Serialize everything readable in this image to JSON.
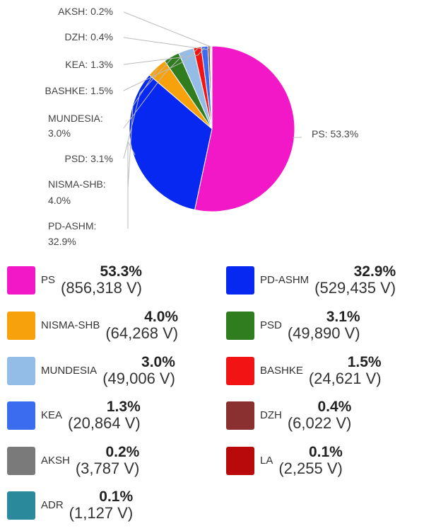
{
  "chart_data": {
    "type": "pie",
    "series": [
      {
        "name": "PS",
        "percent": 53.3,
        "votes": 856318,
        "votes_label": "(856,318 V)",
        "color": "#f218c7"
      },
      {
        "name": "PD-ASHM",
        "percent": 32.9,
        "votes": 529435,
        "votes_label": "(529,435 V)",
        "color": "#0628f0"
      },
      {
        "name": "NISMA-SHB",
        "percent": 4.0,
        "votes": 64268,
        "votes_label": "(64,268 V)",
        "color": "#f7a20c"
      },
      {
        "name": "PSD",
        "percent": 3.1,
        "votes": 49890,
        "votes_label": "(49,890 V)",
        "color": "#2f7d1f"
      },
      {
        "name": "MUNDESIA",
        "percent": 3.0,
        "votes": 49006,
        "votes_label": "(49,006 V)",
        "color": "#93bce6"
      },
      {
        "name": "BASHKE",
        "percent": 1.5,
        "votes": 24621,
        "votes_label": "(24,621 V)",
        "color": "#f21414"
      },
      {
        "name": "KEA",
        "percent": 1.3,
        "votes": 20864,
        "votes_label": "(20,864 V)",
        "color": "#3b6cf0"
      },
      {
        "name": "DZH",
        "percent": 0.4,
        "votes": 6022,
        "votes_label": "(6,022 V)",
        "color": "#8a3030"
      },
      {
        "name": "AKSH",
        "percent": 0.2,
        "votes": 3787,
        "votes_label": "(3,787 V)",
        "color": "#7a7a7a"
      },
      {
        "name": "LA",
        "percent": 0.1,
        "votes": 2255,
        "votes_label": "(2,255 V)",
        "color": "#b80a0a"
      },
      {
        "name": "ADR",
        "percent": 0.1,
        "votes": 1127,
        "votes_label": "(1,127 V)",
        "color": "#2a8a9c"
      }
    ],
    "slice_labels": [
      {
        "party": "PS",
        "lines": [
          "PS: 53.3%"
        ]
      },
      {
        "party": "PD-ASHM",
        "lines": [
          "PD-ASHM:",
          "32.9%"
        ]
      },
      {
        "party": "NISMA-SHB",
        "lines": [
          "NISMA-SHB:",
          "4.0%"
        ]
      },
      {
        "party": "PSD",
        "lines": [
          "PSD: 3.1%"
        ]
      },
      {
        "party": "MUNDESIA",
        "lines": [
          "MUNDESIA:",
          "3.0%"
        ]
      },
      {
        "party": "BASHKE",
        "lines": [
          "BASHKE: 1.5%"
        ]
      },
      {
        "party": "KEA",
        "lines": [
          "KEA: 1.3%"
        ]
      },
      {
        "party": "DZH",
        "lines": [
          "DZH: 0.4%"
        ]
      },
      {
        "party": "AKSH",
        "lines": [
          "AKSH: 0.2%"
        ]
      }
    ],
    "legend_position": "bottom"
  }
}
